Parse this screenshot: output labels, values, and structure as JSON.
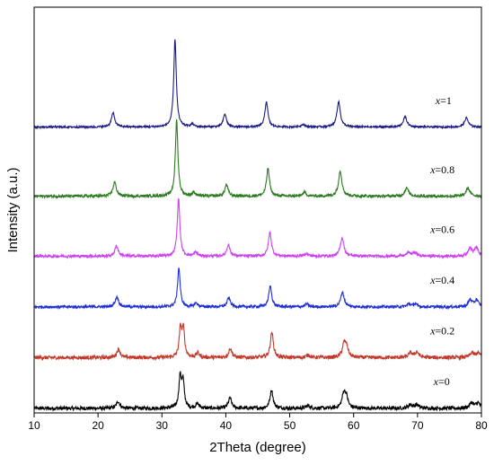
{
  "chart_data": {
    "type": "line",
    "xlabel": "2Theta (degree)",
    "ylabel": "Intensity (a.u.)",
    "xlim": [
      10,
      80
    ],
    "xticks": [
      10,
      20,
      30,
      40,
      50,
      60,
      70,
      80
    ],
    "ylim": [
      0,
      8.8
    ],
    "y_ticks_labeled": false,
    "grid": false,
    "peaks": [
      {
        "x": 22.9,
        "w": 0.32
      },
      {
        "x": 32.6,
        "w": 0.24
      },
      {
        "x": 33.05,
        "w": 0.24
      },
      {
        "x": 35.3,
        "w": 0.3
      },
      {
        "x": 40.4,
        "w": 0.3
      },
      {
        "x": 46.9,
        "w": 0.28
      },
      {
        "x": 52.6,
        "w": 0.32
      },
      {
        "x": 58.2,
        "w": 0.32
      },
      {
        "x": 58.6,
        "w": 0.32
      },
      {
        "x": 68.6,
        "w": 0.35
      },
      {
        "x": 69.6,
        "w": 0.35
      },
      {
        "x": 78.2,
        "w": 0.35
      },
      {
        "x": 79.2,
        "w": 0.35
      }
    ],
    "series": [
      {
        "name_var": "x",
        "name_val": "=0",
        "color": "#000000",
        "baseline": 0.1,
        "noise": 0.04,
        "shift": 0.25,
        "heights": [
          0.15,
          0.65,
          0.55,
          0.1,
          0.22,
          0.4,
          0.06,
          0.3,
          0.22,
          0.08,
          0.08,
          0.12,
          0.12
        ],
        "label_x": 72.5
      },
      {
        "name_var": "x",
        "name_val": "=0.2",
        "color": "#c0392b",
        "baseline": 1.2,
        "noise": 0.04,
        "shift": 0.3,
        "heights": [
          0.18,
          0.6,
          0.58,
          0.1,
          0.2,
          0.55,
          0.06,
          0.28,
          0.2,
          0.1,
          0.12,
          0.1,
          0.1
        ],
        "label_x": 72.0
      },
      {
        "name_var": "x",
        "name_val": "=0.4",
        "color": "#1f2fd6",
        "baseline": 2.3,
        "noise": 0.03,
        "shift": 0.05,
        "heights": [
          0.22,
          0.85,
          0.0,
          0.08,
          0.2,
          0.45,
          0.06,
          0.32,
          0.0,
          0.06,
          0.06,
          0.15,
          0.15
        ],
        "label_x": 72.0
      },
      {
        "name_var": "x",
        "name_val": "=0.6",
        "color": "#cc44ee",
        "baseline": 3.4,
        "noise": 0.03,
        "shift": 0.0,
        "heights": [
          0.22,
          1.25,
          0.0,
          0.08,
          0.25,
          0.52,
          0.06,
          0.4,
          0.0,
          0.08,
          0.08,
          0.18,
          0.18
        ],
        "label_x": 72.0
      },
      {
        "name_var": "x",
        "name_val": "=0.8",
        "color": "#2b7a1f",
        "baseline": 4.7,
        "noise": 0.03,
        "shift": -0.3,
        "heights": [
          0.3,
          1.65,
          0.0,
          0.08,
          0.25,
          0.6,
          0.08,
          0.55,
          0.0,
          0.18,
          0.0,
          0.18,
          0.0
        ],
        "label_x": 72.0
      },
      {
        "name_var": "x",
        "name_val": "=1",
        "color": "#1a1a80",
        "baseline": 6.2,
        "noise": 0.02,
        "shift": -0.55,
        "heights": [
          0.3,
          1.9,
          0.0,
          0.06,
          0.28,
          0.55,
          0.06,
          0.55,
          0.0,
          0.22,
          0.0,
          0.2,
          0.0
        ],
        "label_x": 72.8
      }
    ]
  }
}
